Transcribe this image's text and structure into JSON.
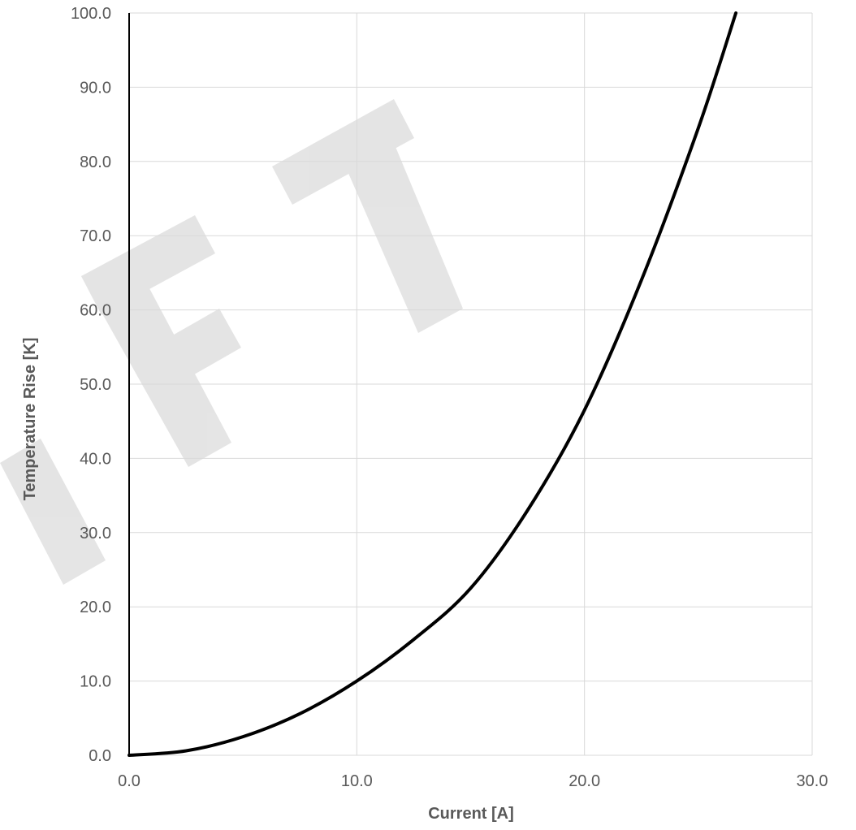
{
  "chart_data": {
    "type": "line",
    "title": "",
    "xlabel": "Current [A]",
    "ylabel": "Temperature Rise [K]",
    "xlim": [
      0,
      30
    ],
    "ylim": [
      0,
      100
    ],
    "x_ticks": [
      "0.0",
      "10.0",
      "20.0",
      "30.0"
    ],
    "y_ticks": [
      "0.0",
      "10.0",
      "20.0",
      "30.0",
      "40.0",
      "50.0",
      "60.0",
      "70.0",
      "80.0",
      "90.0",
      "100.0"
    ],
    "grid": true,
    "legend": "none",
    "series": [
      {
        "color": "#000000",
        "x": [
          0.0,
          2.5,
          5.0,
          7.5,
          10.0,
          12.5,
          15.0,
          17.5,
          20.0,
          22.5,
          25.0,
          26.65
        ],
        "y": [
          0.0,
          0.6,
          2.5,
          5.6,
          10.0,
          15.6,
          22.5,
          33.0,
          46.5,
          64.0,
          84.5,
          100.0
        ]
      }
    ]
  },
  "watermark": {
    "text": "DRAFT",
    "color": "#d9d9d9"
  }
}
